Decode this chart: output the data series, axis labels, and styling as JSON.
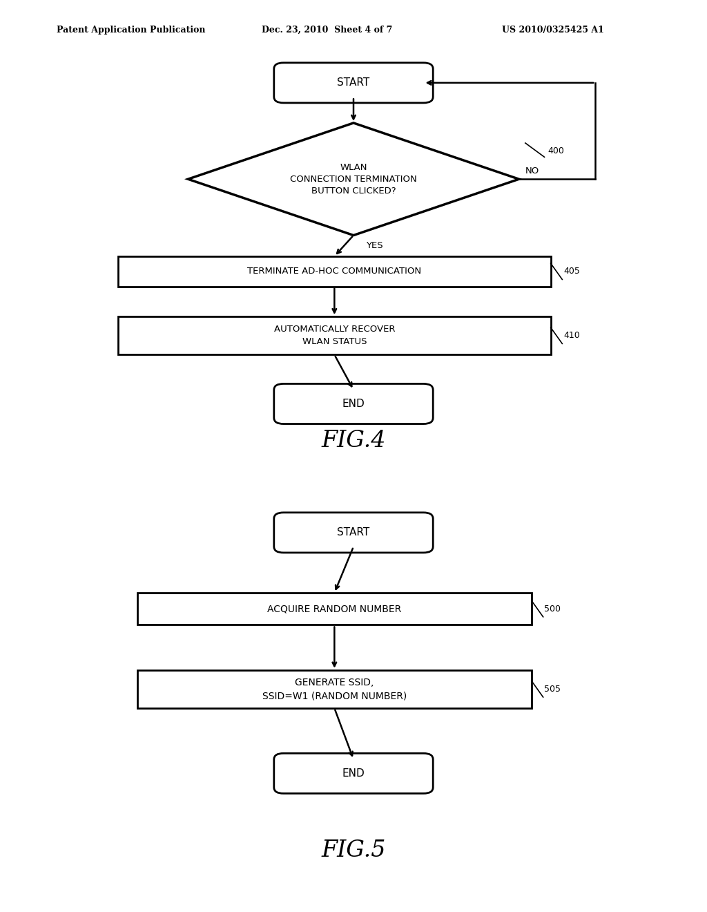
{
  "bg_color": "#ffffff",
  "header_left": "Patent Application Publication",
  "header_mid": "Dec. 23, 2010  Sheet 4 of 7",
  "header_right": "US 2010/0325425 A1",
  "fig4_title": "FIG.4",
  "fig5_title": "FIG.5"
}
